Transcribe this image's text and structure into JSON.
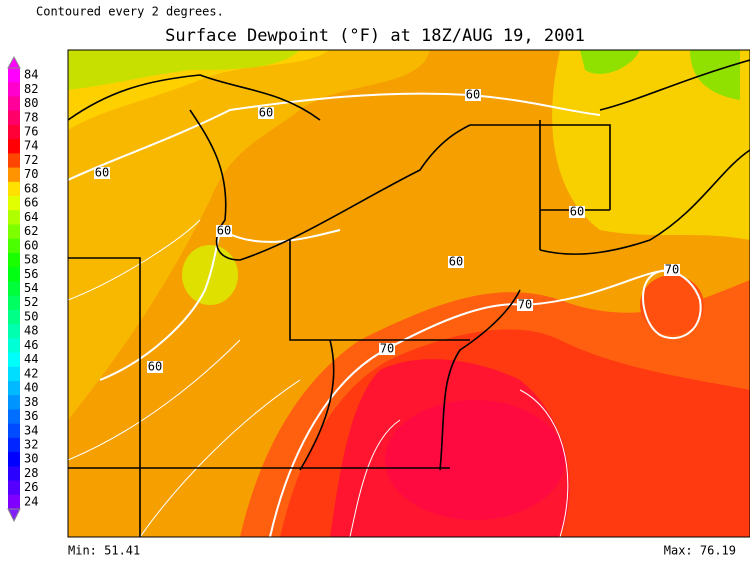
{
  "header": {
    "note": "Contoured every 2 degrees.",
    "title": "Surface Dewpoint (°F) at 18Z/AUG 19, 2001"
  },
  "colorbar": {
    "ticks": [
      84,
      82,
      80,
      78,
      76,
      74,
      72,
      70,
      68,
      66,
      64,
      62,
      60,
      58,
      56,
      54,
      52,
      50,
      48,
      46,
      44,
      42,
      40,
      38,
      36,
      34,
      32,
      30,
      28,
      26,
      24
    ]
  },
  "contour_labels": [
    "60",
    "60",
    "60",
    "60",
    "60",
    "60",
    "60",
    "70",
    "70",
    "70"
  ],
  "footer": {
    "min": "Min: 51.41",
    "max": "Max: 76.19"
  }
}
